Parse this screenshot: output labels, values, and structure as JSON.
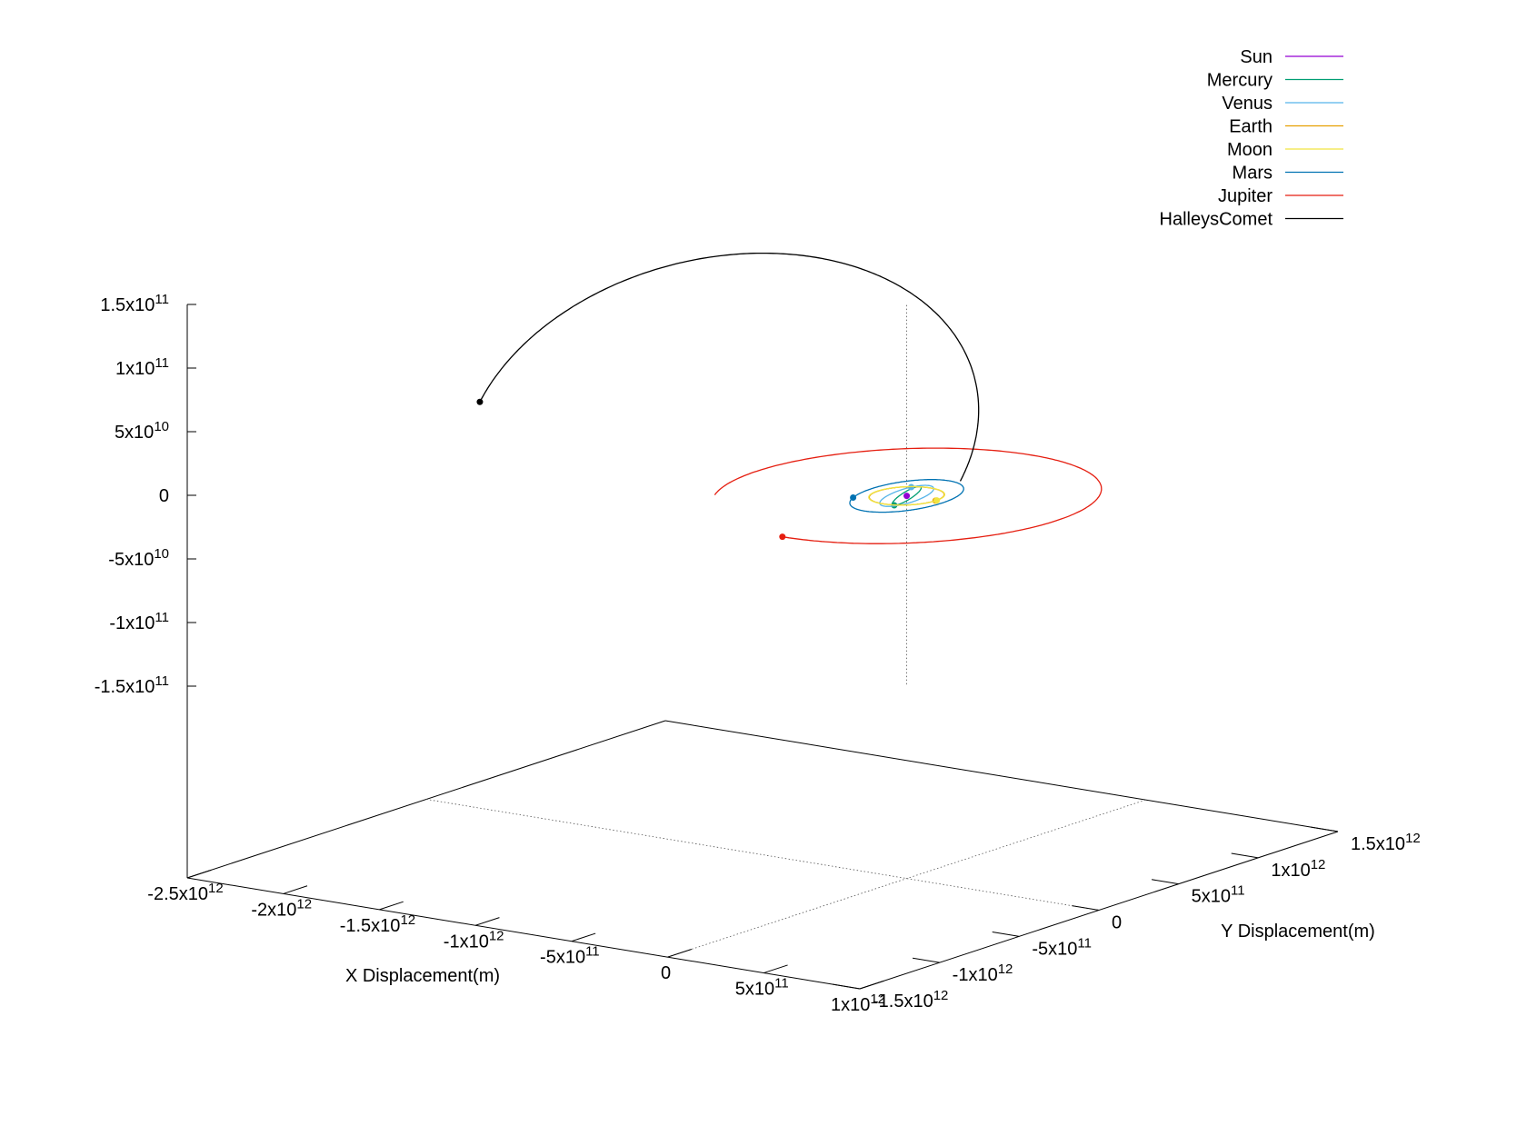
{
  "chart_data": {
    "type": "line",
    "title": "",
    "xlabel": "X Displacement(m)",
    "ylabel": "Y Displacement(m)",
    "zlabel": "",
    "xlim": [
      -2500000000000.0,
      1000000000000.0
    ],
    "ylim": [
      -1500000000000.0,
      1500000000000.0
    ],
    "zlim": [
      -150000000000.0,
      150000000000.0
    ],
    "legend_position": "top-right",
    "grid": false,
    "x_ticks": [
      {
        "v": -2500000000000.0,
        "m": "-2.5x10",
        "e": "12"
      },
      {
        "v": -2000000000000.0,
        "m": "-2x10",
        "e": "12"
      },
      {
        "v": -1500000000000.0,
        "m": "-1.5x10",
        "e": "12"
      },
      {
        "v": -1000000000000.0,
        "m": "-1x10",
        "e": "12"
      },
      {
        "v": -500000000000.0,
        "m": "-5x10",
        "e": "11"
      },
      {
        "v": 0,
        "m": "0",
        "e": ""
      },
      {
        "v": 500000000000.0,
        "m": "5x10",
        "e": "11"
      },
      {
        "v": 1000000000000.0,
        "m": "1x10",
        "e": "12"
      }
    ],
    "y_ticks": [
      {
        "v": -1500000000000.0,
        "m": "-1.5x10",
        "e": "12"
      },
      {
        "v": -1000000000000.0,
        "m": "-1x10",
        "e": "12"
      },
      {
        "v": -500000000000.0,
        "m": "-5x10",
        "e": "11"
      },
      {
        "v": 0,
        "m": "0",
        "e": ""
      },
      {
        "v": 500000000000.0,
        "m": "5x10",
        "e": "11"
      },
      {
        "v": 1000000000000.0,
        "m": "1x10",
        "e": "12"
      },
      {
        "v": 1500000000000.0,
        "m": "1.5x10",
        "e": "12"
      }
    ],
    "z_ticks": [
      {
        "v": 150000000000.0,
        "m": "1.5x10",
        "e": "11"
      },
      {
        "v": 100000000000.0,
        "m": "1x10",
        "e": "11"
      },
      {
        "v": 50000000000.0,
        "m": "5x10",
        "e": "10"
      },
      {
        "v": 0,
        "m": "0",
        "e": ""
      },
      {
        "v": -50000000000.0,
        "m": "-5x10",
        "e": "10"
      },
      {
        "v": -100000000000.0,
        "m": "-1x10",
        "e": "11"
      },
      {
        "v": -150000000000.0,
        "m": "-1.5x10",
        "e": "11"
      }
    ],
    "series": [
      {
        "name": "Sun",
        "color": "#9400d3",
        "type": "point",
        "x": 0,
        "y": 0,
        "z": 0
      },
      {
        "name": "Mercury",
        "color": "#009e73",
        "type": "orbit",
        "a": 58000000000.0,
        "b": 58000000000.0,
        "cx": 0,
        "cy": 0,
        "z_amp": 6000000000.0,
        "start_deg": 0,
        "sweep_deg": 360,
        "marker_deg": 250
      },
      {
        "name": "Venus",
        "color": "#56b4e9",
        "type": "orbit",
        "a": 108000000000.0,
        "b": 108000000000.0,
        "cx": 0,
        "cy": 0,
        "z_amp": 5000000000.0,
        "start_deg": 0,
        "sweep_deg": 360,
        "marker_deg": 120
      },
      {
        "name": "Earth",
        "color": "#e69f00",
        "type": "orbit",
        "a": 150000000000.0,
        "b": 150000000000.0,
        "cx": 0,
        "cy": 0,
        "z_amp": 0,
        "start_deg": 0,
        "sweep_deg": 360,
        "marker_deg": 0
      },
      {
        "name": "Moon",
        "color": "#f0e442",
        "type": "orbit",
        "a": 152000000000.0,
        "b": 152000000000.0,
        "cx": 0,
        "cy": 0,
        "z_amp": 0,
        "start_deg": 0,
        "sweep_deg": 360,
        "marker_deg": 2
      },
      {
        "name": "Mars",
        "color": "#0072b2",
        "type": "orbit",
        "a": 228000000000.0,
        "b": 228000000000.0,
        "cx": 0,
        "cy": 0,
        "z_amp": 4000000000.0,
        "start_deg": 0,
        "sweep_deg": 360,
        "marker_deg": 200
      },
      {
        "name": "Jupiter",
        "color": "#e51e10",
        "type": "orbit",
        "a": 780000000000.0,
        "b": 780000000000.0,
        "cx": 0,
        "cy": 0,
        "z_amp": 0,
        "start_deg": 270,
        "sweep_deg": 300,
        "marker_deg": 270
      },
      {
        "name": "HalleysComet",
        "color": "#000000",
        "type": "comet",
        "a": 1250000000000.0,
        "b": 600000000000.0,
        "cx": -1220000000000.0,
        "cy": 300000000000.0,
        "z_amp": 120000000000.0,
        "start_deg": 0,
        "sweep_deg": 180,
        "marker_deg": 180
      }
    ]
  }
}
